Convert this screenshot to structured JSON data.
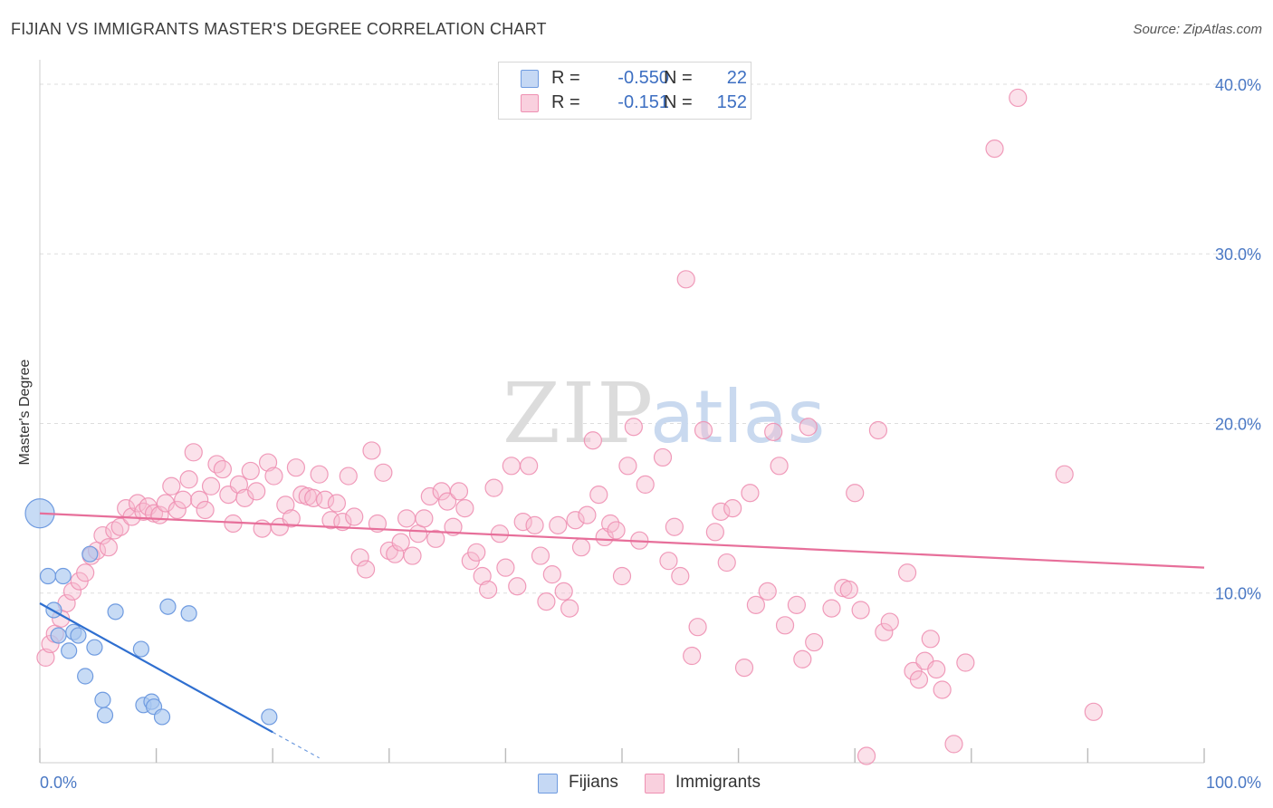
{
  "title": "FIJIAN VS IMMIGRANTS MASTER'S DEGREE CORRELATION CHART",
  "source": "Source: ZipAtlas.com",
  "watermark": {
    "zip": "ZIP",
    "atlas": "atlas"
  },
  "legend": {
    "r_label": "R =",
    "n_label": "N =",
    "fijians": {
      "r": "-0.550",
      "n": "22"
    },
    "immigrants": {
      "r": "-0.151",
      "n": "152"
    }
  },
  "bottom_legend": {
    "fijians": "Fijians",
    "immigrants": "Immigrants"
  },
  "colors": {
    "fijians_fill": "#a9c7f0",
    "fijians_stroke": "#6f9be0",
    "fijians_line": "#2f6fd0",
    "immigrants_fill": "#f6bcd0",
    "immigrants_stroke": "#ee90b2",
    "immigrants_line": "#e76f9a",
    "tick_text": "#4a78c4",
    "grid": "#dddddd"
  },
  "chart_data": {
    "type": "scatter",
    "title": "FIJIAN VS IMMIGRANTS MASTER'S DEGREE CORRELATION CHART",
    "xlabel": "",
    "ylabel": "Master's Degree",
    "xlim": [
      0,
      100
    ],
    "ylim": [
      0,
      40.8
    ],
    "x_tick_labels": [
      "0.0%",
      "100.0%"
    ],
    "y_ticks": [
      10,
      20,
      30,
      40
    ],
    "y_tick_labels": [
      "10.0%",
      "20.0%",
      "30.0%",
      "40.0%"
    ],
    "grid": true,
    "series": [
      {
        "name": "Fijians",
        "r": -0.55,
        "n": 22,
        "trend": {
          "x0": 0,
          "y0": 9.4,
          "x1": 20,
          "y1": 1.8,
          "dash_to_x": 24
        },
        "points": [
          {
            "x": 0,
            "y": 14.7,
            "big": true
          },
          {
            "x": 0.7,
            "y": 11.0
          },
          {
            "x": 2.0,
            "y": 11.0
          },
          {
            "x": 1.2,
            "y": 9.0
          },
          {
            "x": 4.3,
            "y": 12.3
          },
          {
            "x": 1.6,
            "y": 7.5
          },
          {
            "x": 2.9,
            "y": 7.7
          },
          {
            "x": 3.3,
            "y": 7.5
          },
          {
            "x": 2.5,
            "y": 6.6
          },
          {
            "x": 4.7,
            "y": 6.8
          },
          {
            "x": 6.5,
            "y": 8.9
          },
          {
            "x": 11.0,
            "y": 9.2
          },
          {
            "x": 12.8,
            "y": 8.8
          },
          {
            "x": 8.7,
            "y": 6.7
          },
          {
            "x": 3.9,
            "y": 5.1
          },
          {
            "x": 5.4,
            "y": 3.7
          },
          {
            "x": 5.6,
            "y": 2.8
          },
          {
            "x": 8.9,
            "y": 3.4
          },
          {
            "x": 9.6,
            "y": 3.6
          },
          {
            "x": 9.8,
            "y": 3.3
          },
          {
            "x": 10.5,
            "y": 2.7
          },
          {
            "x": 19.7,
            "y": 2.7
          }
        ]
      },
      {
        "name": "Immigrants",
        "r": -0.151,
        "n": 152,
        "trend": {
          "x0": 0,
          "y0": 14.7,
          "x1": 100,
          "y1": 11.5
        },
        "points": [
          {
            "x": 0.5,
            "y": 6.2
          },
          {
            "x": 0.9,
            "y": 7.0
          },
          {
            "x": 1.3,
            "y": 7.6
          },
          {
            "x": 1.8,
            "y": 8.5
          },
          {
            "x": 2.3,
            "y": 9.4
          },
          {
            "x": 2.8,
            "y": 10.1
          },
          {
            "x": 3.4,
            "y": 10.7
          },
          {
            "x": 3.9,
            "y": 11.2
          },
          {
            "x": 4.4,
            "y": 12.2
          },
          {
            "x": 4.9,
            "y": 12.5
          },
          {
            "x": 5.4,
            "y": 13.4
          },
          {
            "x": 5.9,
            "y": 12.7
          },
          {
            "x": 6.4,
            "y": 13.7
          },
          {
            "x": 6.9,
            "y": 13.9
          },
          {
            "x": 7.4,
            "y": 15.0
          },
          {
            "x": 7.9,
            "y": 14.5
          },
          {
            "x": 8.4,
            "y": 15.3
          },
          {
            "x": 8.9,
            "y": 14.8
          },
          {
            "x": 9.3,
            "y": 15.1
          },
          {
            "x": 9.8,
            "y": 14.7
          },
          {
            "x": 10.3,
            "y": 14.6
          },
          {
            "x": 10.8,
            "y": 15.3
          },
          {
            "x": 11.3,
            "y": 16.3
          },
          {
            "x": 11.8,
            "y": 14.9
          },
          {
            "x": 12.3,
            "y": 15.5
          },
          {
            "x": 12.8,
            "y": 16.7
          },
          {
            "x": 13.2,
            "y": 18.3
          },
          {
            "x": 13.7,
            "y": 15.5
          },
          {
            "x": 14.2,
            "y": 14.9
          },
          {
            "x": 14.7,
            "y": 16.3
          },
          {
            "x": 15.2,
            "y": 17.6
          },
          {
            "x": 15.7,
            "y": 17.3
          },
          {
            "x": 16.2,
            "y": 15.8
          },
          {
            "x": 16.6,
            "y": 14.1
          },
          {
            "x": 17.1,
            "y": 16.4
          },
          {
            "x": 17.6,
            "y": 15.6
          },
          {
            "x": 18.1,
            "y": 17.2
          },
          {
            "x": 18.6,
            "y": 16.0
          },
          {
            "x": 19.1,
            "y": 13.8
          },
          {
            "x": 19.6,
            "y": 17.7
          },
          {
            "x": 20.1,
            "y": 16.9
          },
          {
            "x": 20.6,
            "y": 13.9
          },
          {
            "x": 21.1,
            "y": 15.2
          },
          {
            "x": 21.6,
            "y": 14.4
          },
          {
            "x": 22.0,
            "y": 17.4
          },
          {
            "x": 22.5,
            "y": 15.8
          },
          {
            "x": 23.0,
            "y": 15.7
          },
          {
            "x": 23.5,
            "y": 15.6
          },
          {
            "x": 24.0,
            "y": 17.0
          },
          {
            "x": 24.5,
            "y": 15.5
          },
          {
            "x": 25.0,
            "y": 14.3
          },
          {
            "x": 25.5,
            "y": 15.3
          },
          {
            "x": 26.0,
            "y": 14.2
          },
          {
            "x": 26.5,
            "y": 16.9
          },
          {
            "x": 27.0,
            "y": 14.5
          },
          {
            "x": 27.5,
            "y": 12.1
          },
          {
            "x": 28.0,
            "y": 11.4
          },
          {
            "x": 28.5,
            "y": 18.4
          },
          {
            "x": 29.0,
            "y": 14.1
          },
          {
            "x": 29.5,
            "y": 17.1
          },
          {
            "x": 30.0,
            "y": 12.5
          },
          {
            "x": 30.5,
            "y": 12.3
          },
          {
            "x": 31.0,
            "y": 13.0
          },
          {
            "x": 31.5,
            "y": 14.4
          },
          {
            "x": 32.0,
            "y": 12.2
          },
          {
            "x": 32.5,
            "y": 13.5
          },
          {
            "x": 33.0,
            "y": 14.4
          },
          {
            "x": 33.5,
            "y": 15.7
          },
          {
            "x": 34.0,
            "y": 13.2
          },
          {
            "x": 34.5,
            "y": 16.0
          },
          {
            "x": 35.0,
            "y": 15.4
          },
          {
            "x": 35.5,
            "y": 13.9
          },
          {
            "x": 36.0,
            "y": 16.0
          },
          {
            "x": 36.5,
            "y": 15.0
          },
          {
            "x": 37.0,
            "y": 11.9
          },
          {
            "x": 37.5,
            "y": 12.4
          },
          {
            "x": 38.0,
            "y": 11.0
          },
          {
            "x": 38.5,
            "y": 10.2
          },
          {
            "x": 39.0,
            "y": 16.2
          },
          {
            "x": 39.5,
            "y": 13.5
          },
          {
            "x": 40.0,
            "y": 11.5
          },
          {
            "x": 40.5,
            "y": 17.5
          },
          {
            "x": 41.0,
            "y": 10.4
          },
          {
            "x": 41.5,
            "y": 14.2
          },
          {
            "x": 42.0,
            "y": 17.5
          },
          {
            "x": 42.5,
            "y": 14.0
          },
          {
            "x": 43.0,
            "y": 12.2
          },
          {
            "x": 43.5,
            "y": 9.5
          },
          {
            "x": 44.0,
            "y": 11.1
          },
          {
            "x": 44.5,
            "y": 14.0
          },
          {
            "x": 45.0,
            "y": 10.1
          },
          {
            "x": 45.5,
            "y": 9.1
          },
          {
            "x": 46.0,
            "y": 14.3
          },
          {
            "x": 46.5,
            "y": 12.7
          },
          {
            "x": 47.0,
            "y": 14.6
          },
          {
            "x": 47.5,
            "y": 19.0
          },
          {
            "x": 48.0,
            "y": 15.8
          },
          {
            "x": 48.5,
            "y": 13.3
          },
          {
            "x": 49.0,
            "y": 14.1
          },
          {
            "x": 49.5,
            "y": 13.7
          },
          {
            "x": 50.0,
            "y": 11.0
          },
          {
            "x": 50.5,
            "y": 17.5
          },
          {
            "x": 51.0,
            "y": 19.8
          },
          {
            "x": 51.5,
            "y": 13.1
          },
          {
            "x": 52.0,
            "y": 16.4
          },
          {
            "x": 53.5,
            "y": 18.0
          },
          {
            "x": 54.0,
            "y": 11.9
          },
          {
            "x": 54.5,
            "y": 13.9
          },
          {
            "x": 55.0,
            "y": 11.0
          },
          {
            "x": 55.5,
            "y": 28.5
          },
          {
            "x": 56.0,
            "y": 6.3
          },
          {
            "x": 56.5,
            "y": 8.0
          },
          {
            "x": 57.0,
            "y": 19.6
          },
          {
            "x": 58.0,
            "y": 13.6
          },
          {
            "x": 58.5,
            "y": 14.8
          },
          {
            "x": 59.0,
            "y": 11.8
          },
          {
            "x": 59.5,
            "y": 15.0
          },
          {
            "x": 60.5,
            "y": 5.6
          },
          {
            "x": 61.0,
            "y": 15.9
          },
          {
            "x": 61.5,
            "y": 9.3
          },
          {
            "x": 62.5,
            "y": 10.1
          },
          {
            "x": 63.0,
            "y": 19.5
          },
          {
            "x": 63.5,
            "y": 17.5
          },
          {
            "x": 64.0,
            "y": 8.1
          },
          {
            "x": 65.0,
            "y": 9.3
          },
          {
            "x": 65.5,
            "y": 6.1
          },
          {
            "x": 66.0,
            "y": 19.8
          },
          {
            "x": 66.5,
            "y": 7.1
          },
          {
            "x": 68.0,
            "y": 9.1
          },
          {
            "x": 69.0,
            "y": 10.3
          },
          {
            "x": 69.5,
            "y": 10.2
          },
          {
            "x": 70.0,
            "y": 15.9
          },
          {
            "x": 70.5,
            "y": 9.0
          },
          {
            "x": 71.0,
            "y": 0.4
          },
          {
            "x": 72.0,
            "y": 19.6
          },
          {
            "x": 72.5,
            "y": 7.7
          },
          {
            "x": 73.0,
            "y": 8.3
          },
          {
            "x": 74.5,
            "y": 11.2
          },
          {
            "x": 75.0,
            "y": 5.4
          },
          {
            "x": 75.5,
            "y": 4.9
          },
          {
            "x": 76.0,
            "y": 6.0
          },
          {
            "x": 76.5,
            "y": 7.3
          },
          {
            "x": 77.0,
            "y": 5.5
          },
          {
            "x": 77.5,
            "y": 4.3
          },
          {
            "x": 78.5,
            "y": 1.1
          },
          {
            "x": 79.5,
            "y": 5.9
          },
          {
            "x": 82.0,
            "y": 36.2
          },
          {
            "x": 84.0,
            "y": 39.2
          },
          {
            "x": 88.0,
            "y": 17.0
          },
          {
            "x": 90.5,
            "y": 3.0
          }
        ]
      }
    ]
  }
}
